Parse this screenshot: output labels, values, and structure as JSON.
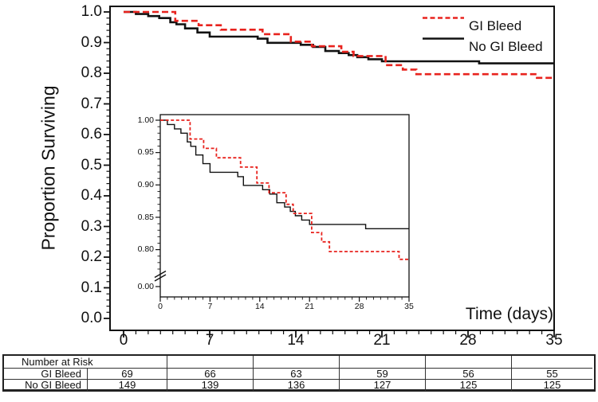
{
  "chart_data": {
    "type": "line",
    "subtype": "kaplan-meier-step-curves",
    "title": "",
    "xlabel": "Time (days)",
    "ylabel": "Proportion Surviving",
    "xlim": [
      0,
      35
    ],
    "x_ticks": [
      "0",
      "7",
      "14",
      "21",
      "28",
      "35"
    ],
    "x_minor_tick_interval": 1,
    "main_axis": {
      "ylim": [
        0.0,
        1.0
      ],
      "y_ticks": [
        "1.0",
        "0.9",
        "0.8",
        "0.7",
        "0.6",
        "0.5",
        "0.4",
        "0.3",
        "0.2",
        "0.1",
        "0.0"
      ],
      "y_minor_tick_interval": 0.02,
      "grid": false
    },
    "inset_axis": {
      "description": "magnified inset with broken y-axis",
      "ylim": [
        0.78,
        1.005
      ],
      "y_ticks": [
        "1.00",
        "0.95",
        "0.90",
        "0.85",
        "0.80"
      ],
      "broken_axis_tick": "0.00",
      "x_ticks": [
        "0",
        "7",
        "14",
        "21",
        "28",
        "35"
      ],
      "grid": false
    },
    "legend_position": "top-right",
    "series": [
      {
        "name": "No GI Bleed",
        "color": "#121212",
        "line_style": "solid",
        "steps": [
          [
            0,
            1.0
          ],
          [
            1,
            0.9933
          ],
          [
            2,
            0.9866
          ],
          [
            2.9,
            0.9799
          ],
          [
            3.8,
            0.9664
          ],
          [
            4.3,
            0.9597
          ],
          [
            5,
            0.9463
          ],
          [
            6,
            0.9329
          ],
          [
            7,
            0.9195
          ],
          [
            10.9,
            0.9128
          ],
          [
            11.7,
            0.8993
          ],
          [
            14.4,
            0.8926
          ],
          [
            15.4,
            0.8859
          ],
          [
            16.4,
            0.8725
          ],
          [
            17.5,
            0.8658
          ],
          [
            18.3,
            0.8591
          ],
          [
            19,
            0.8524
          ],
          [
            19.9,
            0.8457
          ],
          [
            21,
            0.839
          ],
          [
            28.9,
            0.8323
          ],
          [
            35,
            0.8323
          ]
        ]
      },
      {
        "name": "GI Bleed",
        "color": "#e8231e",
        "line_style": "dashed",
        "steps": [
          [
            0,
            1.0
          ],
          [
            4.2,
            0.971
          ],
          [
            6.1,
            0.9565
          ],
          [
            7.9,
            0.942
          ],
          [
            11.3,
            0.9275
          ],
          [
            13.6,
            0.903
          ],
          [
            15.3,
            0.888
          ],
          [
            17.7,
            0.87
          ],
          [
            18.7,
            0.856
          ],
          [
            21.3,
            0.8265
          ],
          [
            22.7,
            0.812
          ],
          [
            23.8,
            0.797
          ],
          [
            33.6,
            0.785
          ],
          [
            35,
            0.785
          ]
        ]
      }
    ]
  },
  "legend": {
    "items": [
      "GI Bleed",
      "No GI Bleed"
    ]
  },
  "risk_table": {
    "title": "Number at Risk",
    "time_points": [
      "0",
      "7",
      "14",
      "21",
      "28",
      "35"
    ],
    "rows": [
      {
        "label": "GI Bleed",
        "values": [
          "69",
          "66",
          "63",
          "59",
          "56",
          "55"
        ]
      },
      {
        "label": "No GI Bleed",
        "values": [
          "149",
          "139",
          "136",
          "127",
          "125",
          "125"
        ]
      }
    ]
  }
}
